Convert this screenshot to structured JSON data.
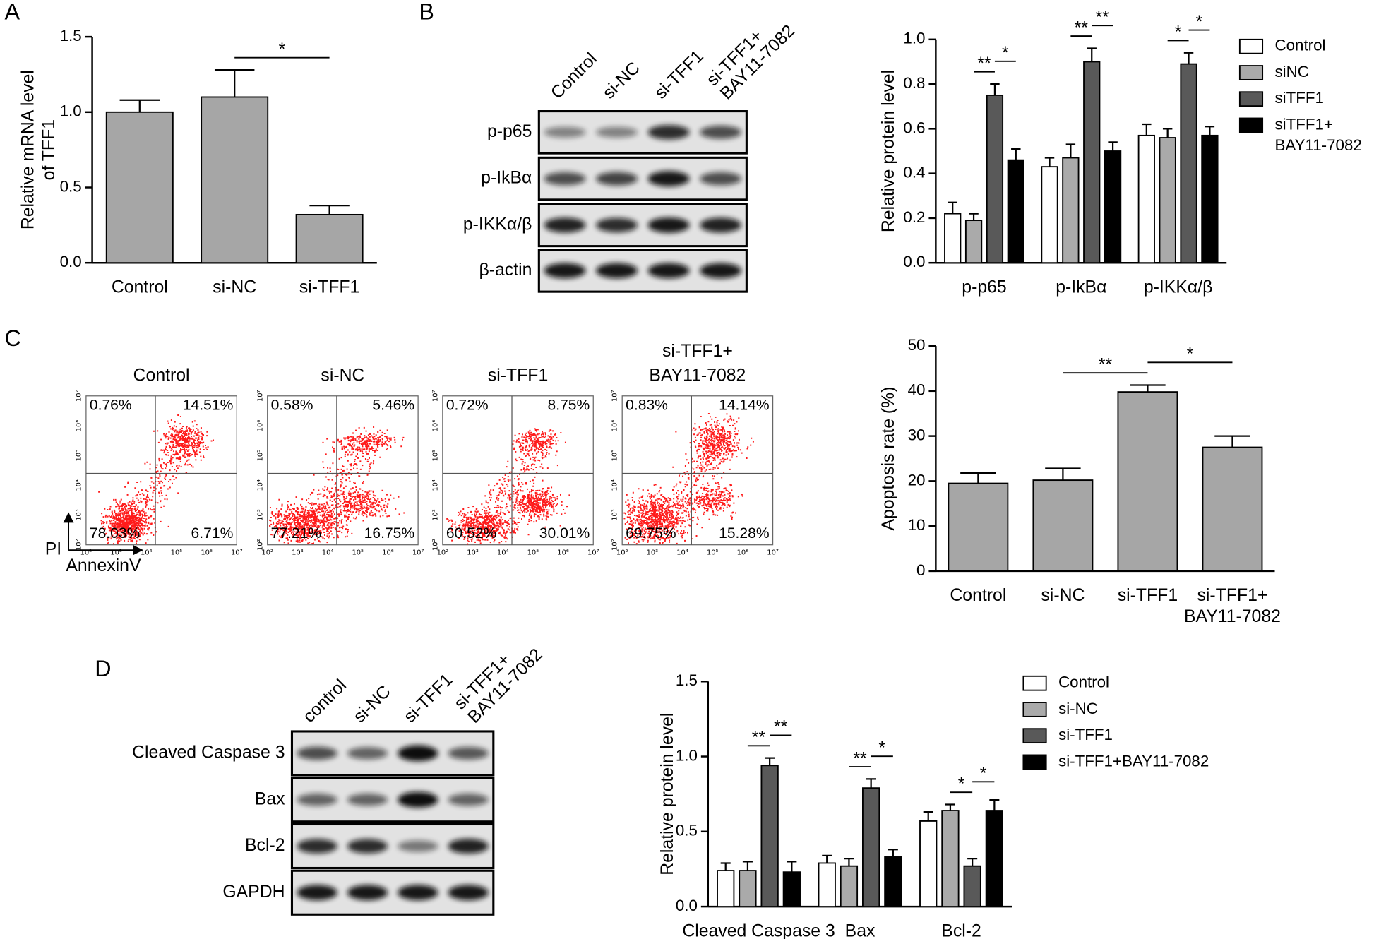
{
  "panel_labels": [
    "A",
    "B",
    "C",
    "D"
  ],
  "chart_data": [
    {
      "type": "bar",
      "ylabel": "Relative mRNA level\nof TFF1",
      "categories": [
        "Control",
        "si-NC",
        "si-TFF1"
      ],
      "values": [
        1.0,
        1.1,
        0.32
      ],
      "errors": [
        0.08,
        0.18,
        0.06
      ],
      "color": "#a6a6a6",
      "ylim": [
        0,
        1.5
      ],
      "yticks": [
        {
          "value": 0,
          "label": "0.0"
        },
        {
          "value": 0.5,
          "label": "0.5"
        },
        {
          "value": 1,
          "label": "1.0"
        },
        1.5
      ],
      "annotations": [
        {
          "text": "*",
          "between": [
            1,
            2
          ]
        }
      ]
    },
    {
      "type": "bar",
      "ylabel": "Relative protein level",
      "categories": [
        "p-p65",
        "p-IkBα",
        "p-IKKα/β"
      ],
      "series": [
        {
          "name": "Control",
          "color": "#ffffff",
          "values": [
            0.22,
            0.43,
            0.57
          ],
          "errors": [
            0.05,
            0.04,
            0.05
          ]
        },
        {
          "name": "siNC",
          "color": "#aaaaaa",
          "values": [
            0.19,
            0.47,
            0.56
          ],
          "errors": [
            0.03,
            0.06,
            0.04
          ]
        },
        {
          "name": "siTFF1",
          "color": "#595959",
          "values": [
            0.75,
            0.9,
            0.89
          ],
          "errors": [
            0.05,
            0.06,
            0.05
          ]
        },
        {
          "name": "siTFF1+\nBAY11-7082",
          "color": "#000000",
          "values": [
            0.46,
            0.5,
            0.57
          ],
          "errors": [
            0.05,
            0.04,
            0.04
          ]
        }
      ],
      "ylim": [
        0,
        1
      ],
      "yticks": [
        {
          "value": 0,
          "label": "0.0"
        },
        0.2,
        0.4,
        0.6,
        0.8,
        {
          "value": 1,
          "label": "1.0"
        }
      ],
      "legend": "right",
      "annotations": [
        {
          "text": "**",
          "group": 0,
          "between": [
            1,
            2
          ]
        },
        {
          "text": "*",
          "group": 0,
          "between": [
            2,
            3
          ]
        },
        {
          "text": "**",
          "group": 1,
          "between": [
            1,
            2
          ]
        },
        {
          "text": "**",
          "group": 1,
          "between": [
            2,
            3
          ]
        },
        {
          "text": "*",
          "group": 2,
          "between": [
            1,
            2
          ]
        },
        {
          "text": "*",
          "group": 2,
          "between": [
            2,
            3
          ]
        }
      ]
    },
    {
      "type": "bar",
      "ylabel": "Apoptosis rate (%)",
      "categories": [
        "Control",
        "si-NC",
        "si-TFF1",
        "si-TFF1+\nBAY11-7082"
      ],
      "values": [
        19.5,
        20.2,
        39.8,
        27.5
      ],
      "errors": [
        2.3,
        2.6,
        1.5,
        2.5
      ],
      "color": "#a6a6a6",
      "ylim": [
        0,
        50
      ],
      "yticks": [
        0,
        10,
        20,
        30,
        40,
        50
      ],
      "annotations": [
        {
          "text": "**",
          "between": [
            1,
            2
          ]
        },
        {
          "text": "*",
          "between": [
            2,
            3
          ]
        }
      ]
    },
    {
      "type": "bar",
      "ylabel": "Relative protein level",
      "categories": [
        "Cleaved Caspase 3",
        "Bax",
        "Bcl-2"
      ],
      "series": [
        {
          "name": "Control",
          "color": "#ffffff",
          "values": [
            0.24,
            0.29,
            0.57
          ],
          "errors": [
            0.05,
            0.05,
            0.06
          ]
        },
        {
          "name": "si-NC",
          "color": "#aaaaaa",
          "values": [
            0.24,
            0.27,
            0.64
          ],
          "errors": [
            0.06,
            0.05,
            0.04
          ]
        },
        {
          "name": "si-TFF1",
          "color": "#595959",
          "values": [
            0.94,
            0.79,
            0.27
          ],
          "errors": [
            0.05,
            0.06,
            0.05
          ]
        },
        {
          "name": "si-TFF1+BAY11-7082",
          "color": "#000000",
          "values": [
            0.23,
            0.33,
            0.64
          ],
          "errors": [
            0.07,
            0.05,
            0.07
          ]
        }
      ],
      "ylim": [
        0,
        1.5
      ],
      "yticks": [
        {
          "value": 0,
          "label": "0.0"
        },
        {
          "value": 0.5,
          "label": "0.5"
        },
        {
          "value": 1,
          "label": "1.0"
        },
        1.5
      ],
      "legend": "right",
      "annotations": [
        {
          "text": "**",
          "group": 0,
          "between": [
            1,
            2
          ]
        },
        {
          "text": "**",
          "group": 0,
          "between": [
            2,
            3
          ]
        },
        {
          "text": "**",
          "group": 1,
          "between": [
            1,
            2
          ]
        },
        {
          "text": "*",
          "group": 1,
          "between": [
            2,
            3
          ]
        },
        {
          "text": "*",
          "group": 2,
          "between": [
            1,
            2
          ]
        },
        {
          "text": "*",
          "group": 2,
          "between": [
            2,
            3
          ]
        }
      ]
    }
  ],
  "blots": [
    {
      "lanes": [
        "Control",
        "si-NC",
        "si-TFF1",
        "si-TFF1+\nBAY11-7082"
      ],
      "rows": [
        "p-p65",
        "p-IkBα",
        "p-IKKα/β",
        "β-actin"
      ]
    },
    {
      "lanes": [
        "control",
        "si-NC",
        "si-TFF1",
        "si-TFF1+\nBAY11-7082"
      ],
      "rows": [
        "Cleaved Caspase 3",
        "Bax",
        "Bcl-2",
        "GAPDH"
      ]
    }
  ],
  "flow": {
    "y_label": "PI",
    "x_label": "AnnexinV",
    "axis_ticks": [
      "10²",
      "10³",
      "10⁴",
      "10⁵",
      "10⁶",
      "10⁷"
    ],
    "panels": [
      {
        "title": "Control",
        "quadrants": [
          "0.76%",
          "14.51%",
          "78.03%",
          "6.71%"
        ]
      },
      {
        "title": "si-NC",
        "quadrants": [
          "0.58%",
          "5.46%",
          "77.21%",
          "16.75%"
        ]
      },
      {
        "title": "si-TFF1",
        "quadrants": [
          "0.72%",
          "8.75%",
          "60.52%",
          "30.01%"
        ]
      },
      {
        "title": "si-TFF1+\nBAY11-7082",
        "quadrants": [
          "0.83%",
          "14.14%",
          "69.75%",
          "15.28%"
        ]
      }
    ]
  }
}
